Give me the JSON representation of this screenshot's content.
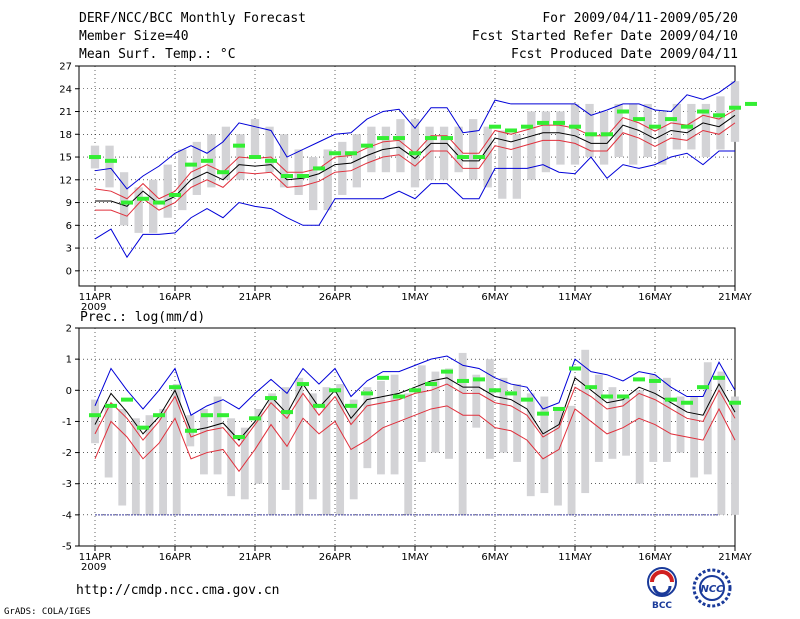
{
  "header": {
    "title": "DERF/NCC/BCC Monthly Forecast",
    "member_size": "Member Size=40",
    "variable": "Mean Surf. Temp.: °C",
    "period": "For 2009/04/11-2009/05/20",
    "fcst_started": "Fcst Started Refer Date 2009/04/10",
    "fcst_produced": "Fcst Produced Date 2009/04/11"
  },
  "footer": {
    "url": "http://cmdp.ncc.cma.gov.cn",
    "grads": "GrADS: COLA/IGES",
    "logo_bcc": "BCC",
    "logo_ncc": "NCC"
  },
  "colors": {
    "box": "#d3d3d6",
    "green": "#33ee33",
    "black": "#000000",
    "red": "#e0303c",
    "blue": "#0000d8",
    "navy": "#3a3a9a"
  },
  "chart_data": [
    {
      "type": "line",
      "title": "Mean Surf. Temp.: °C",
      "ylim": [
        -2,
        27
      ],
      "yticks": [
        0,
        3,
        6,
        9,
        12,
        15,
        18,
        21,
        24,
        27
      ],
      "ytick_labels": [
        "0",
        "3",
        "6",
        "9",
        "12",
        "15",
        "18",
        "21",
        "24",
        "27"
      ],
      "xlim": [
        0,
        41
      ],
      "xtick_days": [
        1,
        6,
        11,
        16,
        21,
        26,
        31,
        36,
        41
      ],
      "xtick_labels": [
        "11APR",
        "16APR",
        "21APR",
        "26APR",
        "1MAY",
        "6MAY",
        "11MAY",
        "16MAY",
        "21MAY"
      ],
      "year_label": "2009",
      "box_range": [
        [
          13.5,
          16.5
        ],
        [
          11,
          16.5
        ],
        [
          6,
          13
        ],
        [
          5,
          11
        ],
        [
          5,
          12
        ],
        [
          7,
          14
        ],
        [
          8,
          16
        ],
        [
          10,
          17
        ],
        [
          11,
          18
        ],
        [
          12,
          19
        ],
        [
          12,
          18
        ],
        [
          15,
          20
        ],
        [
          13,
          19
        ],
        [
          11,
          18
        ],
        [
          10,
          16
        ],
        [
          8,
          15
        ],
        [
          8,
          16
        ],
        [
          10,
          17
        ],
        [
          11,
          18
        ],
        [
          13,
          19
        ],
        [
          13,
          19
        ],
        [
          13,
          20
        ],
        [
          11,
          20
        ],
        [
          12,
          19
        ],
        [
          12,
          19
        ],
        [
          13,
          19
        ],
        [
          12,
          20
        ],
        [
          11,
          19
        ],
        [
          9.5,
          18.5
        ],
        [
          9.5,
          18
        ],
        [
          12,
          21
        ],
        [
          13,
          21
        ],
        [
          14,
          21
        ],
        [
          14,
          22
        ],
        [
          15,
          22
        ],
        [
          14,
          21
        ],
        [
          15,
          22
        ],
        [
          14,
          22
        ],
        [
          15,
          22
        ],
        [
          14,
          21
        ],
        [
          16,
          22
        ],
        [
          16,
          22
        ],
        [
          15,
          22
        ],
        [
          16,
          23
        ],
        [
          17,
          25
        ]
      ],
      "green": [
        15,
        14.5,
        9,
        9.5,
        9,
        10,
        14,
        14.5,
        13,
        16.5,
        15,
        14.5,
        12.5,
        12.5,
        13.5,
        15.5,
        15.5,
        16.5,
        17.5,
        17.5,
        15.5,
        17.5,
        17.5,
        15,
        15,
        19,
        18.5,
        19,
        19.5,
        19.5,
        19,
        18,
        18,
        21,
        20,
        19,
        20,
        19,
        21,
        20.5,
        21.5,
        22
      ],
      "black": [
        9.2,
        9.2,
        8.5,
        10.5,
        8.8,
        9.8,
        12,
        13,
        12,
        14,
        13.8,
        14,
        12,
        12.2,
        12.8,
        14,
        14.2,
        15.2,
        16,
        16.3,
        14.8,
        16.8,
        16.8,
        14.5,
        14.5,
        17.5,
        17,
        17.6,
        18.2,
        18.2,
        17.8,
        16.8,
        16.8,
        19.2,
        18.5,
        17.4,
        18.5,
        18.2,
        19.5,
        19,
        20.5
      ],
      "red_upper": [
        10.8,
        10.5,
        9.5,
        11.5,
        9.5,
        10.5,
        13,
        14,
        13,
        15,
        14.8,
        15,
        13,
        13,
        13.5,
        15,
        15.2,
        16.2,
        17,
        17.2,
        15.5,
        17.8,
        17.8,
        15.5,
        15.5,
        18.5,
        18,
        18.6,
        19.2,
        19.2,
        18.8,
        17.8,
        17.8,
        20.2,
        19.5,
        18.4,
        19.5,
        19.2,
        20.5,
        20,
        21.2
      ],
      "red_lower": [
        8,
        8,
        7.2,
        9.5,
        8,
        9,
        11,
        12,
        11,
        13,
        12.8,
        13,
        11,
        11.2,
        11.8,
        13,
        13.2,
        14.2,
        15,
        15.3,
        13.8,
        15.8,
        15.8,
        13.5,
        13.5,
        16.5,
        16,
        16.6,
        17.2,
        17.2,
        16.8,
        15.8,
        15.8,
        18.2,
        17.5,
        16.4,
        17.5,
        17.2,
        18.5,
        18,
        19.5
      ],
      "blue_upper": [
        13.2,
        13.5,
        10.8,
        12.5,
        13.8,
        15.5,
        16.5,
        15.5,
        17,
        19.5,
        19,
        18.5,
        15,
        16,
        17,
        18,
        18.2,
        20,
        21,
        21.3,
        18.8,
        21.5,
        21.5,
        18.2,
        18.5,
        22.5,
        22,
        22,
        22,
        22,
        22,
        20.5,
        21.2,
        22,
        22,
        21.2,
        21,
        23.2,
        22.6,
        23.5,
        25
      ],
      "blue_lower": [
        4.2,
        5.5,
        1.8,
        4.8,
        4.8,
        5,
        7,
        8.2,
        7,
        9,
        8.5,
        8.2,
        7,
        6,
        6,
        9.5,
        9.5,
        9.5,
        9.5,
        10.5,
        9.5,
        11.5,
        11.5,
        9.5,
        9.5,
        13.5,
        13.5,
        13.5,
        14,
        13,
        12.8,
        15,
        12.2,
        14,
        13.5,
        14,
        15,
        15.5,
        14,
        15.8,
        15.8
      ]
    },
    {
      "type": "line",
      "title": "Prec.: log(mm/d)",
      "ylim": [
        -5,
        2
      ],
      "yticks": [
        -5,
        -4,
        -3,
        -2,
        -1,
        0,
        1,
        2
      ],
      "ytick_labels": [
        "-5",
        "-4",
        "-3",
        "-2",
        "-1",
        "0",
        "1",
        "2"
      ],
      "xlim": [
        0,
        41
      ],
      "xtick_days": [
        1,
        6,
        11,
        16,
        21,
        26,
        31,
        36,
        41
      ],
      "xtick_labels": [
        "11APR",
        "16APR",
        "21APR",
        "26APR",
        "1MAY",
        "6MAY",
        "11MAY",
        "16MAY",
        "21MAY"
      ],
      "year_label": "2009",
      "baseline": -4,
      "box_range": [
        [
          -1.7,
          -0.3
        ],
        [
          -2.8,
          -0.5
        ],
        [
          -3.7,
          -0.6
        ],
        [
          -4,
          -0.9
        ],
        [
          -4,
          -0.8
        ],
        [
          -4,
          -0.6
        ],
        [
          -4,
          0.2
        ],
        [
          -1.8,
          -0.8
        ],
        [
          -2.7,
          -0.6
        ],
        [
          -2.7,
          -0.2
        ],
        [
          -3.4,
          -0.9
        ],
        [
          -3.5,
          -1.2
        ],
        [
          -3,
          -0.6
        ],
        [
          -4,
          -0.1
        ],
        [
          -3.2,
          0.1
        ],
        [
          -4,
          0.4
        ],
        [
          -3.5,
          -0.1
        ],
        [
          -4,
          0.1
        ],
        [
          -4,
          0.2
        ],
        [
          -3.5,
          -0.3
        ],
        [
          -2.5,
          0.1
        ],
        [
          -2.7,
          0.3
        ],
        [
          -2.7,
          0.5
        ],
        [
          -4,
          -0.1
        ],
        [
          -2.3,
          0.8
        ],
        [
          -2,
          0.6
        ],
        [
          -2.2,
          0.7
        ],
        [
          -4,
          1.2
        ],
        [
          -1.2,
          0.5
        ],
        [
          -2.2,
          1
        ],
        [
          -2,
          0.4
        ],
        [
          -2.3,
          0.2
        ],
        [
          -3.4,
          -0.1
        ],
        [
          -3.3,
          -0.2
        ],
        [
          -3.7,
          -0.6
        ],
        [
          -4,
          -0.5
        ],
        [
          -3.3,
          1.3
        ],
        [
          -2.3,
          0.5
        ],
        [
          -2.2,
          0.1
        ],
        [
          -2.1,
          -0.2
        ],
        [
          -3,
          0
        ],
        [
          -2.3,
          0.5
        ],
        [
          -2.3,
          0.4
        ],
        [
          -2,
          -0.2
        ],
        [
          -2.8,
          -0.2
        ],
        [
          -2.7,
          0.9
        ],
        [
          -4,
          0.6
        ],
        [
          -4,
          -0.2
        ]
      ],
      "green": [
        -0.8,
        -0.5,
        -0.3,
        -1.2,
        -0.8,
        0.1,
        -1.3,
        -0.8,
        -0.8,
        -1.5,
        -0.9,
        -0.25,
        -0.7,
        0.2,
        -0.5,
        0,
        -0.5,
        -0.1,
        0.4,
        -0.2,
        0,
        0.2,
        0.6,
        0.3,
        0.35,
        0,
        -0.1,
        -0.3,
        -0.75,
        -0.6,
        0.7,
        0.1,
        -0.2,
        -0.2,
        0.35,
        0.3,
        -0.3,
        -0.4,
        0.1,
        0.4,
        -0.4
      ],
      "black": [
        -1.1,
        -0.1,
        -0.7,
        -1.4,
        -0.85,
        0,
        -1.3,
        -1.2,
        -1.05,
        -1.6,
        -1,
        -0.2,
        -0.75,
        0.2,
        -0.55,
        0,
        -0.9,
        -0.3,
        -0.2,
        -0.1,
        0.1,
        0.3,
        0.4,
        0.1,
        0.1,
        -0.2,
        -0.3,
        -0.6,
        -1.4,
        -1.1,
        0.4,
        0,
        -0.4,
        -0.3,
        0.1,
        -0.1,
        -0.4,
        -0.7,
        -0.8,
        0.2,
        -0.7
      ],
      "red_upper": [
        -1.4,
        -0.4,
        -0.9,
        -1.6,
        -1,
        -0.2,
        -1.5,
        -1.3,
        -1.2,
        -1.8,
        -1.1,
        -0.4,
        -0.9,
        -0.1,
        -0.8,
        -0.2,
        -1.1,
        -0.5,
        -0.4,
        -0.3,
        -0.1,
        0,
        0.2,
        -0.1,
        -0.1,
        -0.4,
        -0.5,
        -0.8,
        -1.5,
        -1.2,
        0.1,
        -0.2,
        -0.6,
        -0.5,
        -0.1,
        -0.3,
        -0.6,
        -0.9,
        -1,
        0,
        -0.9
      ],
      "red_lower": [
        -2.2,
        -1,
        -1.5,
        -2.2,
        -1.7,
        -0.9,
        -2.2,
        -2,
        -1.9,
        -2.6,
        -1.9,
        -1.1,
        -1.8,
        -0.9,
        -1.4,
        -1,
        -1.9,
        -1.6,
        -1.2,
        -1,
        -0.8,
        -0.6,
        -0.5,
        -0.8,
        -0.8,
        -1.2,
        -1.3,
        -1.6,
        -2.2,
        -1.9,
        -0.6,
        -1,
        -1.4,
        -1.2,
        -0.9,
        -1.1,
        -1.4,
        -1.5,
        -1.6,
        -0.6,
        -1.6
      ],
      "blue_upper": [
        -0.5,
        0.7,
        0,
        -0.6,
        0,
        0.7,
        -0.8,
        -0.5,
        -0.3,
        -0.6,
        -0.1,
        0.35,
        -0.1,
        0.7,
        0.2,
        0.7,
        -0.2,
        0.3,
        0.6,
        0.6,
        0.8,
        1,
        1.1,
        0.8,
        0.7,
        0.4,
        0.2,
        0.1,
        -0.6,
        -0.4,
        1,
        0.6,
        0.5,
        0.3,
        0.6,
        0.5,
        0.1,
        -0.2,
        -0.2,
        0.9,
        0
      ]
    }
  ]
}
